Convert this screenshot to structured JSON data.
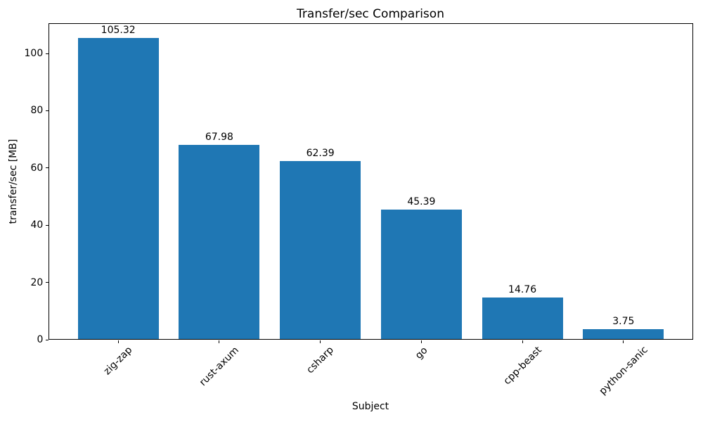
{
  "chart_data": {
    "type": "bar",
    "title": "Transfer/sec Comparison",
    "xlabel": "Subject",
    "ylabel": "transfer/sec [MB]",
    "categories": [
      "zig-zap",
      "rust-axum",
      "csharp",
      "go",
      "cpp-beast",
      "python-sanic"
    ],
    "values": [
      105.32,
      67.98,
      62.39,
      45.39,
      14.76,
      3.75
    ],
    "bar_value_labels": [
      "105.32",
      "67.98",
      "62.39",
      "45.39",
      "14.76",
      "3.75"
    ],
    "yticks": [
      0,
      20,
      40,
      60,
      80,
      100
    ],
    "ylim": [
      0,
      110.59
    ],
    "xlim": [
      -0.69,
      5.69
    ],
    "bar_width_fraction": 0.8,
    "xtick_label_rotation_deg": 45,
    "bar_color": "#1f77b4",
    "text_color": "#000000",
    "spine_color": "#000000",
    "grid": false,
    "legend": false
  }
}
